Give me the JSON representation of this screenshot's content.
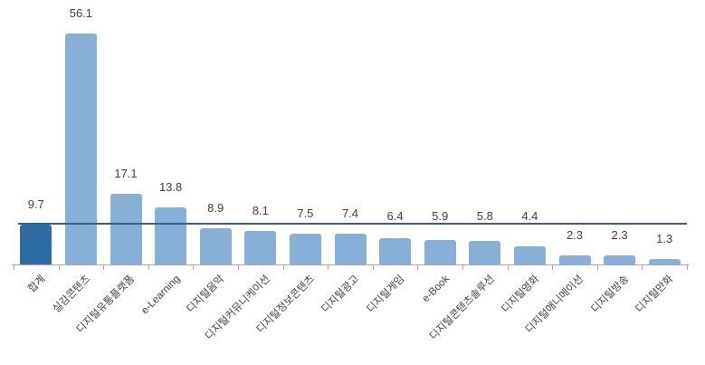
{
  "chart_data": {
    "type": "bar",
    "title": "",
    "xlabel": "",
    "ylabel": "",
    "categories": [
      "합계",
      "실감콘텐츠",
      "디지털유통플랫폼",
      "e-Learning",
      "디지털음악",
      "디지털커뮤니케이션",
      "디지털정보콘텐츠",
      "디지털광고",
      "디지털게임",
      "e-Book",
      "디지털콘텐츠솔루션",
      "디지털영화",
      "디지털애니메이션",
      "디지털방송",
      "디지털만화"
    ],
    "values": [
      9.7,
      56.1,
      17.1,
      13.8,
      8.9,
      8.1,
      7.5,
      7.4,
      6.4,
      5.9,
      5.8,
      4.4,
      2.3,
      2.3,
      1.3
    ],
    "data_labels": [
      "9.7",
      "56.1",
      "17.1",
      "13.8",
      "8.9",
      "8.1",
      "7.5",
      "7.4",
      "6.4",
      "5.9",
      "5.8",
      "4.4",
      "2.3",
      "2.3",
      "1.3"
    ],
    "highlight_index": 0,
    "bar_color_default": "#87AFD8",
    "bar_color_highlight": "#2E6DA4",
    "reference_line": {
      "value": 9.7,
      "color": "#33618C"
    },
    "axis_color": "#A6A6A6",
    "label_color": "#3F3F3F",
    "ylim": [
      0,
      60
    ],
    "grid": false,
    "legend": null,
    "category_label_rotation_deg": -45
  }
}
